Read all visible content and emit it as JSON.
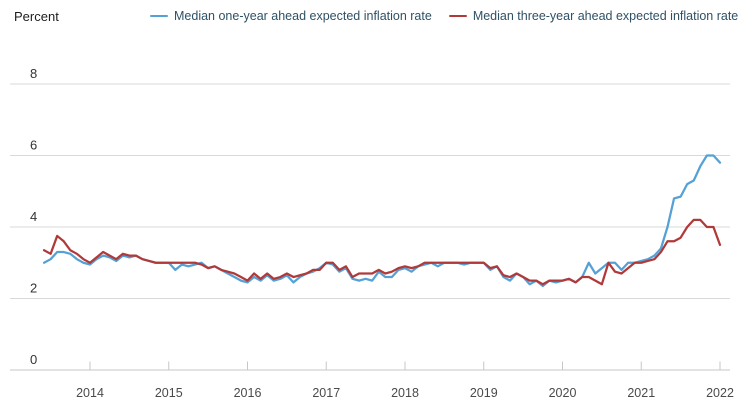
{
  "header": {
    "unit_label": "Percent"
  },
  "chart_data": {
    "type": "line",
    "title": "",
    "ylabel": "Percent",
    "xlabel": "",
    "frequency": "monthly",
    "x_start": "2013-06",
    "x_end": "2022-01",
    "x_tick_labels": [
      "2014",
      "2015",
      "2016",
      "2017",
      "2018",
      "2019",
      "2020",
      "2021",
      "2022"
    ],
    "y_ticks": [
      0,
      2,
      4,
      6,
      8
    ],
    "ylim": [
      0,
      8.8
    ],
    "grid": "horizontal",
    "legend_position": "top",
    "colors": {
      "grid": "#d9d9d9",
      "axis": "#c7c7c7",
      "y_tick_text": "#333333",
      "x_tick_text": "#4a4a4a",
      "legend_text": "#2f5166"
    },
    "series": [
      {
        "name": "Median one-year ahead expected inflation rate",
        "color": "#55a1d5",
        "values": [
          3.0,
          3.1,
          3.3,
          3.3,
          3.25,
          3.1,
          3.0,
          2.95,
          3.1,
          3.2,
          3.15,
          3.05,
          3.2,
          3.15,
          3.2,
          3.1,
          3.05,
          3.0,
          3.0,
          3.0,
          2.8,
          2.95,
          2.9,
          2.95,
          3.0,
          2.85,
          2.9,
          2.8,
          2.7,
          2.6,
          2.5,
          2.45,
          2.6,
          2.5,
          2.65,
          2.5,
          2.55,
          2.65,
          2.45,
          2.6,
          2.7,
          2.75,
          2.85,
          3.0,
          2.95,
          2.75,
          2.85,
          2.55,
          2.5,
          2.55,
          2.5,
          2.75,
          2.6,
          2.6,
          2.8,
          2.85,
          2.75,
          2.9,
          2.95,
          3.0,
          2.9,
          3.0,
          3.0,
          3.0,
          2.95,
          3.0,
          3.0,
          3.0,
          2.8,
          2.9,
          2.6,
          2.5,
          2.7,
          2.6,
          2.4,
          2.5,
          2.35,
          2.5,
          2.45,
          2.5,
          2.55,
          2.45,
          2.6,
          3.0,
          2.7,
          2.85,
          3.0,
          3.0,
          2.8,
          3.0,
          3.0,
          3.05,
          3.1,
          3.2,
          3.4,
          4.0,
          4.8,
          4.85,
          5.2,
          5.3,
          5.7,
          6.0,
          6.0,
          5.8
        ]
      },
      {
        "name": "Median three-year ahead expected inflation rate",
        "color": "#b03a3a",
        "values": [
          3.35,
          3.25,
          3.75,
          3.6,
          3.35,
          3.25,
          3.1,
          3.0,
          3.15,
          3.3,
          3.2,
          3.1,
          3.25,
          3.2,
          3.2,
          3.1,
          3.05,
          3.0,
          3.0,
          3.0,
          3.0,
          3.0,
          3.0,
          3.0,
          2.95,
          2.85,
          2.9,
          2.8,
          2.75,
          2.7,
          2.6,
          2.5,
          2.7,
          2.55,
          2.7,
          2.55,
          2.6,
          2.7,
          2.6,
          2.65,
          2.7,
          2.8,
          2.8,
          3.0,
          3.0,
          2.8,
          2.9,
          2.6,
          2.7,
          2.7,
          2.7,
          2.8,
          2.7,
          2.75,
          2.85,
          2.9,
          2.85,
          2.9,
          3.0,
          3.0,
          3.0,
          3.0,
          3.0,
          3.0,
          3.0,
          3.0,
          3.0,
          3.0,
          2.85,
          2.9,
          2.65,
          2.6,
          2.7,
          2.6,
          2.5,
          2.5,
          2.4,
          2.5,
          2.5,
          2.5,
          2.55,
          2.45,
          2.6,
          2.6,
          2.5,
          2.4,
          3.0,
          2.75,
          2.7,
          2.85,
          3.0,
          3.0,
          3.05,
          3.1,
          3.3,
          3.6,
          3.6,
          3.7,
          4.0,
          4.2,
          4.2,
          4.0,
          4.0,
          3.5
        ]
      }
    ]
  }
}
